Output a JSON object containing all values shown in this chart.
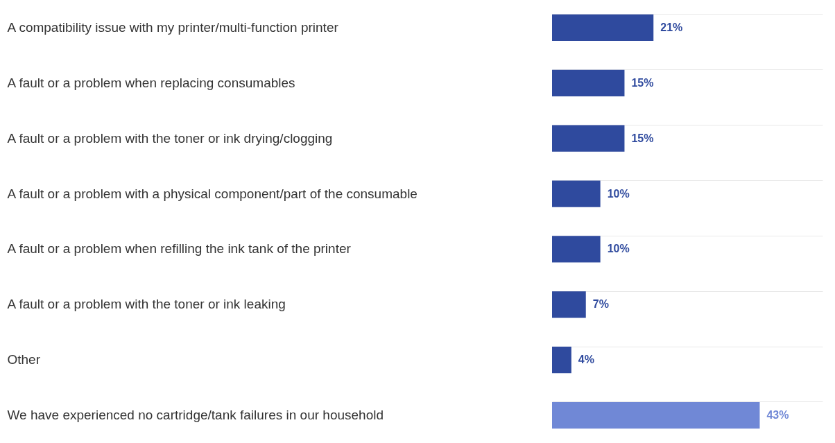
{
  "chart_data": {
    "type": "bar",
    "orientation": "horizontal",
    "categories": [
      "A compatibility issue with my printer/multi-function printer",
      "A fault or a problem when replacing consumables",
      "A fault or a problem with the toner or ink drying/clogging",
      "A fault or a problem with a physical component/part of the consumable",
      "A fault or a problem when refilling the ink tank of the printer",
      "A fault or a problem with the toner or ink leaking",
      "Other",
      "We have experienced no cartridge/tank failures in our household"
    ],
    "values": [
      21,
      15,
      15,
      10,
      10,
      7,
      4,
      43
    ],
    "value_labels": [
      "21%",
      "15%",
      "15%",
      "10%",
      "10%",
      "7%",
      "4%",
      "43%"
    ],
    "colors": [
      "#2f4a9e",
      "#2f4a9e",
      "#2f4a9e",
      "#2f4a9e",
      "#2f4a9e",
      "#2f4a9e",
      "#2f4a9e",
      "#7088d6"
    ],
    "xlim": [
      0,
      56
    ],
    "tick_labels": "y",
    "grid": "y"
  }
}
